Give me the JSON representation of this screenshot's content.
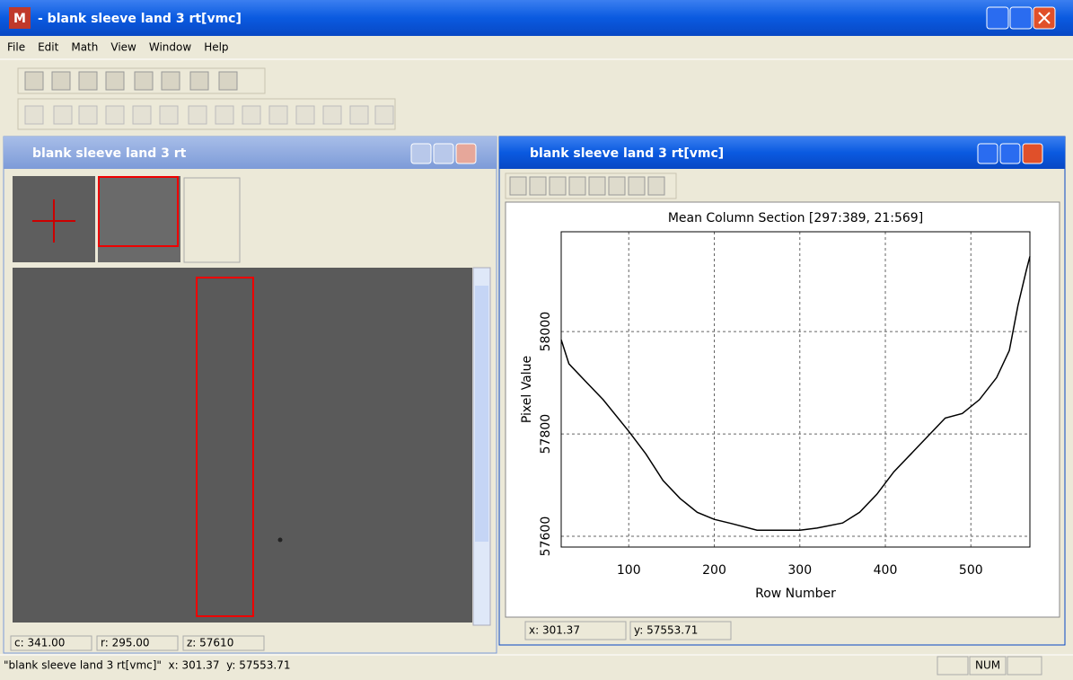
{
  "app_window": {
    "title": "- blank sleeve land 3 rt[vmc]",
    "icon": "M"
  },
  "menu": [
    "File",
    "Edit",
    "Math",
    "View",
    "Window",
    "Help"
  ],
  "image_window": {
    "title": "blank sleeve land 3 rt",
    "status": [
      "c: 341.00",
      "r: 295.00",
      "z: 57610"
    ]
  },
  "plot_window": {
    "title": "blank sleeve land 3 rt[vmc]",
    "status": [
      "x: 301.37",
      "y: 57553.71"
    ]
  },
  "status_bar": {
    "text": "\"blank sleeve land 3 rt[vmc]\"  x: 301.37  y: 57553.71",
    "num": "NUM"
  },
  "chart_data": {
    "type": "line",
    "title": "Mean Column Section [297:389, 21:569]",
    "x_label": "Row Number",
    "y_label": "Pixel Value",
    "x": [
      21,
      30,
      50,
      70,
      100,
      120,
      140,
      160,
      180,
      200,
      220,
      250,
      280,
      300,
      320,
      350,
      370,
      390,
      410,
      430,
      450,
      470,
      490,
      510,
      530,
      545,
      555,
      565,
      569
    ],
    "values": [
      57984,
      57937,
      57902,
      57867,
      57805,
      57761,
      57709,
      57674,
      57647,
      57633,
      57625,
      57612,
      57612,
      57612,
      57616,
      57626,
      57647,
      57682,
      57726,
      57761,
      57796,
      57831,
      57840,
      57867,
      57910,
      57963,
      58051,
      58121,
      58147
    ],
    "color": "#000000",
    "xlim": [
      21,
      569
    ],
    "ylim": [
      57579,
      58195
    ],
    "xticks": [
      100,
      200,
      300,
      400,
      500
    ],
    "yticks": [
      57600,
      57800,
      58000
    ],
    "grid": true
  }
}
